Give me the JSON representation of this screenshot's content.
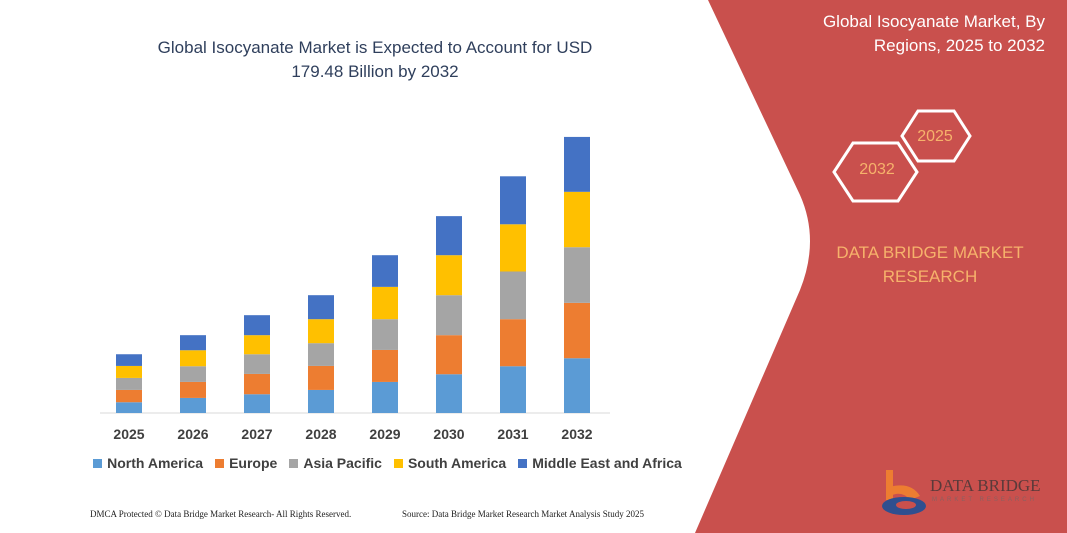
{
  "colors": {
    "panel": "#c9504d",
    "north_america": "#5b9bd5",
    "europe": "#ed7d31",
    "asia_pacific": "#a5a5a5",
    "south_america": "#ffc000",
    "middle_east_africa": "#4472c4",
    "accent_text": "#f6b26b"
  },
  "side_panel": {
    "title_line1": "Global Isocyanate Market, By",
    "title_line2": "Regions, 2025 to 2032",
    "hex_year_start": "2025",
    "hex_year_end": "2032",
    "brand_line1": "DATA BRIDGE MARKET",
    "brand_line2": "RESEARCH",
    "logo_text": "DATA BRIDGE",
    "logo_subtext": "MARKET RESEARCH"
  },
  "footer": {
    "left": "DMCA Protected © Data Bridge Market Research- All Rights Reserved.",
    "right": "Source: Data Bridge Market Research  Market Analysis Study 2025"
  },
  "chart_data": {
    "type": "bar",
    "stacked": true,
    "title": "Global Isocyanate Market is Expected to Account for USD 179.48 Billion by 2032",
    "title_line1": "Global Isocyanate Market is Expected to Account for USD",
    "title_line2": "179.48 Billion by 2032",
    "xlabel": "",
    "ylabel": "",
    "ylim": [
      0,
      184
    ],
    "grid": false,
    "legend_position": "bottom",
    "categories": [
      "2025",
      "2026",
      "2027",
      "2028",
      "2029",
      "2030",
      "2031",
      "2032"
    ],
    "series": [
      {
        "name": "North America",
        "values": [
          7.0,
          9.8,
          12.2,
          15.0,
          20.2,
          25.2,
          30.4,
          35.6
        ]
      },
      {
        "name": "Europe",
        "values": [
          8.0,
          10.4,
          13.2,
          15.6,
          20.8,
          25.4,
          30.6,
          36.0
        ]
      },
      {
        "name": "Asia Pacific",
        "values": [
          7.8,
          10.2,
          12.8,
          14.8,
          20.0,
          26.0,
          31.0,
          36.2
        ]
      },
      {
        "name": "South America",
        "values": [
          7.8,
          10.4,
          12.4,
          15.6,
          21.0,
          26.0,
          30.7,
          36.0
        ]
      },
      {
        "name": "Middle East and Africa",
        "values": [
          7.6,
          9.8,
          13.0,
          15.6,
          20.6,
          25.4,
          31.2,
          35.7
        ]
      }
    ]
  }
}
